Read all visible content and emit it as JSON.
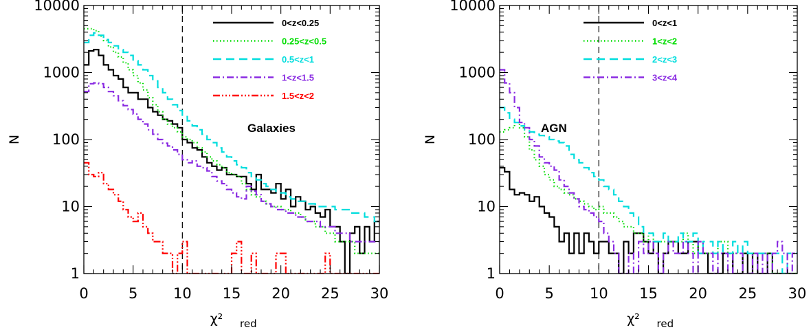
{
  "chart_data": [
    {
      "type": "line",
      "drawstyle": "steps",
      "annotation": "Galaxies",
      "xlabel": "χ²",
      "xlabel_sub": "red",
      "ylabel": "N",
      "xlim": [
        0,
        30
      ],
      "ylim": [
        1,
        10000
      ],
      "yscale": "log",
      "xticks": [
        "0",
        "5",
        "10",
        "15",
        "20",
        "25",
        "30"
      ],
      "yticks": [
        "1",
        "10",
        "100",
        "1000",
        "10000"
      ],
      "vline_x": 10,
      "bin_width": 0.5,
      "x": [
        0,
        0.5,
        1,
        1.5,
        2,
        2.5,
        3,
        3.5,
        4,
        4.5,
        5,
        5.5,
        6,
        6.5,
        7,
        7.5,
        8,
        8.5,
        9,
        9.5,
        10,
        10.5,
        11,
        11.5,
        12,
        12.5,
        13,
        13.5,
        14,
        14.5,
        15,
        15.5,
        16,
        16.5,
        17,
        17.5,
        18,
        18.5,
        19,
        19.5,
        20,
        20.5,
        21,
        21.5,
        22,
        22.5,
        23,
        23.5,
        24,
        24.5,
        25,
        25.5,
        26,
        26.5,
        27,
        27.5,
        28,
        28.5,
        29,
        29.5
      ],
      "legend_position": "top-right",
      "series": [
        {
          "name": "0<z<0.25",
          "color": "#000000",
          "dash": "solid",
          "values": [
            1300,
            2100,
            2200,
            1800,
            1300,
            1100,
            900,
            800,
            600,
            500,
            500,
            400,
            400,
            300,
            260,
            230,
            200,
            190,
            170,
            150,
            100,
            90,
            75,
            70,
            55,
            45,
            40,
            35,
            38,
            30,
            30,
            28,
            28,
            22,
            18,
            30,
            18,
            18,
            16,
            22,
            13,
            18,
            10,
            14,
            12,
            9,
            10,
            8,
            7,
            9,
            5,
            5,
            3,
            1,
            4,
            5,
            2,
            5,
            3,
            6
          ]
        },
        {
          "name": "0.25<z<0.5",
          "color": "#00dd00",
          "dash": "dotted",
          "values": [
            4500,
            4500,
            4200,
            3500,
            3000,
            2400,
            2000,
            1700,
            1400,
            1100,
            900,
            700,
            550,
            420,
            330,
            260,
            200,
            170,
            150,
            130,
            110,
            100,
            90,
            75,
            65,
            55,
            48,
            42,
            38,
            32,
            30,
            28,
            22,
            18,
            15,
            14,
            12,
            11,
            10,
            10,
            9,
            9,
            8,
            8,
            7,
            6,
            6,
            5,
            5,
            4,
            4,
            3,
            3,
            3,
            3,
            2,
            2,
            2,
            2,
            2
          ]
        },
        {
          "name": "0.5<z<1",
          "color": "#00dddd",
          "dash": "dashed",
          "values": [
            2800,
            3600,
            3900,
            3600,
            3100,
            2800,
            2500,
            2200,
            2000,
            1800,
            1500,
            1300,
            1100,
            900,
            750,
            600,
            500,
            400,
            330,
            270,
            220,
            190,
            160,
            140,
            120,
            100,
            90,
            75,
            65,
            55,
            48,
            42,
            38,
            32,
            28,
            25,
            22,
            20,
            18,
            16,
            16,
            14,
            13,
            12,
            12,
            11,
            11,
            10,
            10,
            10,
            10,
            9,
            9,
            9,
            8,
            8,
            8,
            7,
            7,
            6
          ]
        },
        {
          "name": "1<z<1.5",
          "color": "#8a2be2",
          "dash": "dashdot",
          "values": [
            520,
            680,
            700,
            680,
            600,
            520,
            450,
            380,
            320,
            280,
            240,
            200,
            170,
            140,
            120,
            100,
            88,
            80,
            70,
            60,
            50,
            45,
            48,
            40,
            38,
            34,
            28,
            24,
            22,
            18,
            16,
            14,
            13,
            20,
            17,
            15,
            12,
            11,
            10,
            9,
            9,
            8,
            8,
            7,
            7,
            6,
            6,
            6,
            5,
            5,
            5,
            4,
            4,
            4,
            3,
            3,
            3,
            3,
            3,
            3
          ]
        },
        {
          "name": "1.5<z<2",
          "color": "#ff0000",
          "dash": "dashdotdotdot",
          "values": [
            45,
            30,
            28,
            32,
            22,
            18,
            15,
            12,
            9,
            7,
            6,
            8,
            5,
            4,
            3,
            3,
            2,
            2,
            1,
            2,
            3,
            1,
            1,
            1,
            1,
            1,
            1,
            1,
            1,
            1,
            2,
            3,
            1,
            1,
            2,
            1,
            1,
            1,
            1,
            2,
            2,
            1,
            1,
            1,
            1,
            1,
            1,
            1,
            1,
            2,
            1,
            1,
            1,
            1,
            1,
            1,
            1,
            1,
            1,
            1
          ]
        }
      ]
    },
    {
      "type": "line",
      "drawstyle": "steps",
      "annotation": "AGN",
      "xlabel": "χ²",
      "xlabel_sub": "red",
      "ylabel": "N",
      "xlim": [
        0,
        30
      ],
      "ylim": [
        1,
        10000
      ],
      "yscale": "log",
      "xticks": [
        "0",
        "5",
        "10",
        "15",
        "20",
        "25",
        "30"
      ],
      "yticks": [
        "1",
        "10",
        "100",
        "1000",
        "10000"
      ],
      "vline_x": 10,
      "bin_width": 0.5,
      "x": [
        0,
        0.5,
        1,
        1.5,
        2,
        2.5,
        3,
        3.5,
        4,
        4.5,
        5,
        5.5,
        6,
        6.5,
        7,
        7.5,
        8,
        8.5,
        9,
        9.5,
        10,
        10.5,
        11,
        11.5,
        12,
        12.5,
        13,
        13.5,
        14,
        14.5,
        15,
        15.5,
        16,
        16.5,
        17,
        17.5,
        18,
        18.5,
        19,
        19.5,
        20,
        20.5,
        21,
        21.5,
        22,
        22.5,
        23,
        23.5,
        24,
        24.5,
        25,
        25.5,
        26,
        26.5,
        27,
        27.5,
        28,
        28.5,
        29,
        29.5
      ],
      "legend_position": "top-right",
      "series": [
        {
          "name": "0<z<1",
          "color": "#000000",
          "dash": "solid",
          "values": [
            38,
            33,
            18,
            15,
            16,
            15,
            12,
            14,
            10,
            8,
            7,
            5,
            3,
            4,
            2,
            4,
            2,
            4,
            3,
            2,
            3,
            3,
            2,
            2,
            1,
            3,
            2,
            4,
            4,
            3,
            2,
            3,
            1,
            2,
            3,
            3,
            2,
            2,
            3,
            3,
            2,
            2,
            1,
            1,
            1,
            2,
            2,
            1,
            1,
            2,
            1,
            2,
            1,
            1,
            2,
            1,
            1,
            1,
            1,
            1
          ]
        },
        {
          "name": "1<z<2",
          "color": "#00dd00",
          "dash": "dotted",
          "values": [
            130,
            140,
            150,
            180,
            150,
            110,
            70,
            50,
            40,
            30,
            25,
            20,
            18,
            16,
            15,
            13,
            12,
            11,
            10,
            9,
            10,
            8,
            8,
            7,
            6,
            5,
            5,
            4,
            4,
            3,
            4,
            3,
            3,
            3,
            3,
            3,
            3,
            4,
            3,
            2,
            3,
            2,
            2,
            2,
            3,
            3,
            2,
            2,
            2,
            2,
            2,
            2,
            2,
            2,
            2,
            1,
            1,
            1,
            1,
            1
          ]
        },
        {
          "name": "2<z<3",
          "color": "#00dddd",
          "dash": "dashed",
          "values": [
            300,
            250,
            200,
            180,
            160,
            140,
            130,
            120,
            115,
            110,
            100,
            95,
            90,
            80,
            60,
            50,
            45,
            38,
            32,
            28,
            25,
            20,
            18,
            15,
            12,
            10,
            8,
            7,
            5,
            4,
            4,
            3,
            3,
            4,
            3,
            3,
            4,
            3,
            3,
            4,
            2,
            3,
            3,
            2,
            3,
            2,
            2,
            3,
            2,
            3,
            2,
            2,
            2,
            2,
            2,
            2,
            2,
            1,
            2,
            2
          ]
        },
        {
          "name": "3<z<4",
          "color": "#8a2be2",
          "dash": "dashdot",
          "values": [
            1100,
            700,
            500,
            300,
            180,
            150,
            100,
            80,
            55,
            45,
            40,
            35,
            25,
            20,
            16,
            13,
            10,
            9,
            8,
            7,
            6,
            4,
            3,
            2,
            1,
            1,
            2,
            1,
            3,
            2,
            3,
            2,
            1,
            2,
            3,
            2,
            2,
            3,
            2,
            1,
            3,
            2,
            2,
            1,
            2,
            2,
            1,
            2,
            2,
            1,
            1,
            2,
            1,
            2,
            1,
            2,
            3,
            2,
            1,
            2
          ]
        }
      ]
    }
  ]
}
